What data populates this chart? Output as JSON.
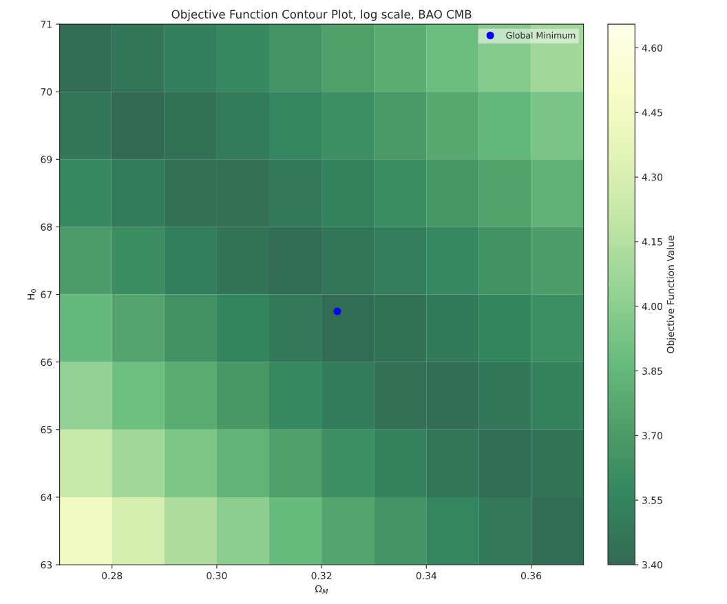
{
  "chart_data": [
    {
      "type": "heatmap",
      "title": "Objective Function Contour Plot, log scale, BAO CMB",
      "xlabel": "Ω$_{M}$",
      "ylabel": "H$_{0}$",
      "clabel": "Objective Function Value",
      "x": [
        0.275,
        0.285,
        0.295,
        0.305,
        0.315,
        0.325,
        0.335,
        0.345,
        0.355,
        0.365
      ],
      "y": [
        70.5,
        69.5,
        68.5,
        67.5,
        66.5,
        65.5,
        64.5,
        63.5
      ],
      "cells": [
        [
          3.41,
          3.46,
          3.52,
          3.58,
          3.65,
          3.72,
          3.8,
          3.89,
          3.98,
          4.08
        ],
        [
          3.47,
          3.4,
          3.44,
          3.5,
          3.56,
          3.62,
          3.69,
          3.77,
          3.85,
          3.94
        ],
        [
          3.58,
          3.5,
          3.43,
          3.43,
          3.48,
          3.53,
          3.6,
          3.67,
          3.74,
          3.82
        ],
        [
          3.71,
          3.61,
          3.52,
          3.45,
          3.41,
          3.46,
          3.51,
          3.57,
          3.64,
          3.71
        ],
        [
          3.86,
          3.75,
          3.64,
          3.55,
          3.48,
          3.41,
          3.44,
          3.49,
          3.55,
          3.62
        ],
        [
          4.03,
          3.9,
          3.79,
          3.68,
          3.58,
          3.5,
          3.43,
          3.42,
          3.47,
          3.53
        ],
        [
          4.23,
          4.08,
          3.95,
          3.83,
          3.72,
          3.62,
          3.53,
          3.46,
          3.41,
          3.45
        ],
        [
          4.45,
          4.29,
          4.13,
          4.0,
          3.87,
          3.75,
          3.65,
          3.56,
          3.48,
          3.41
        ]
      ],
      "clim": [
        3.4,
        4.655
      ],
      "cticks": [
        {
          "value": 3.4,
          "label": "3.40"
        },
        {
          "value": 3.55,
          "label": "3.55"
        },
        {
          "value": 3.7,
          "label": "3.70"
        },
        {
          "value": 3.85,
          "label": "3.85"
        },
        {
          "value": 4.0,
          "label": "4.00"
        },
        {
          "value": 4.15,
          "label": "4.15"
        },
        {
          "value": 4.3,
          "label": "4.30"
        },
        {
          "value": 4.45,
          "label": "4.45"
        },
        {
          "value": 4.6,
          "label": "4.60"
        }
      ],
      "xlim": [
        0.27,
        0.37
      ],
      "xticks": [
        {
          "value": 0.28,
          "label": "0.28"
        },
        {
          "value": 0.3,
          "label": "0.30"
        },
        {
          "value": 0.32,
          "label": "0.32"
        },
        {
          "value": 0.34,
          "label": "0.34"
        },
        {
          "value": 0.36,
          "label": "0.36"
        }
      ],
      "ylim": [
        63,
        71
      ],
      "yticks": [
        63,
        64,
        65,
        66,
        67,
        68,
        69,
        70,
        71
      ],
      "legend": "top right",
      "series": [
        {
          "type": "scatter",
          "name": "Global Minimum",
          "color": "#0000ff",
          "x": [
            0.323
          ],
          "values": [
            66.75
          ],
          "marker": "circle"
        }
      ]
    }
  ]
}
